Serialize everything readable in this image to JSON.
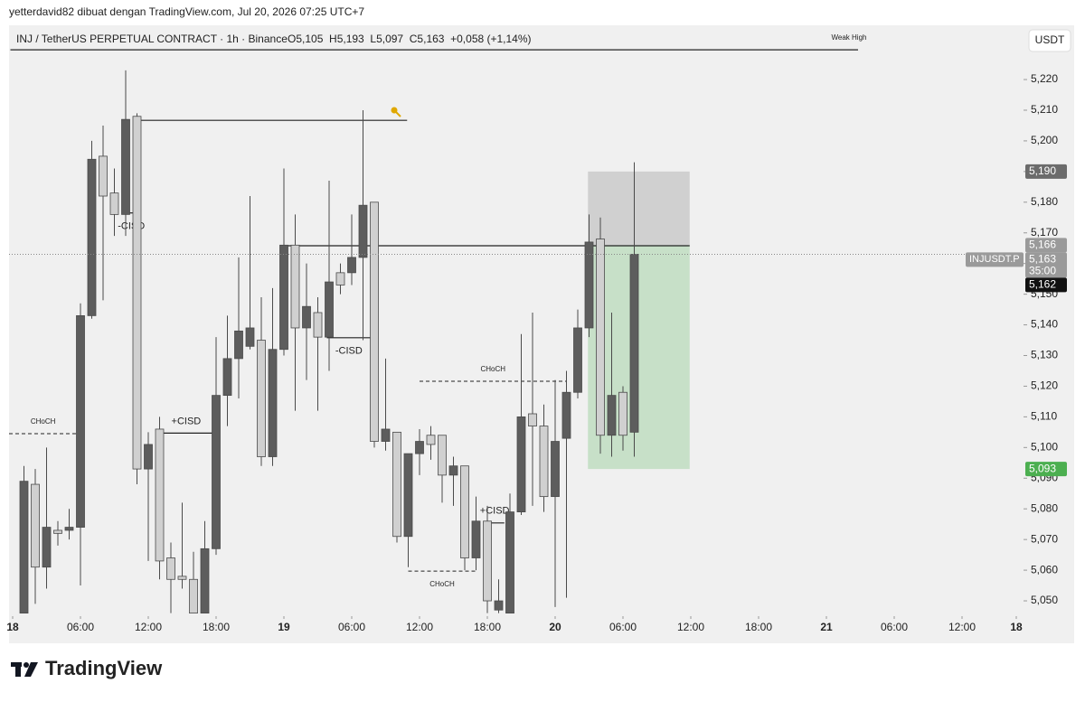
{
  "header": {
    "credit": "yetterdavid82 dibuat dengan TradingView.com, Jul 20, 2026 07:25 UTC+7",
    "symbol": "INJ / TetherUS PERPETUAL CONTRACT · 1h · Binance",
    "ohlc": "O5,105  H5,193  L5,097  C5,163  +0,058 (+1,14%)",
    "currency": "USDT",
    "logo": "TradingView"
  },
  "chart_data": {
    "type": "candlestick",
    "x": [
      1,
      2,
      3,
      4,
      5,
      6,
      7,
      8,
      9,
      10,
      11,
      12,
      13,
      14,
      15,
      16,
      17,
      18,
      19,
      20,
      21,
      22,
      23,
      24,
      25,
      26,
      27,
      28,
      29,
      30,
      31,
      32,
      33,
      34,
      35,
      36,
      37,
      38,
      39,
      40,
      41,
      42,
      43,
      44,
      45,
      46,
      47,
      48,
      49,
      50,
      51,
      52,
      53,
      54,
      55
    ],
    "open": [
      5.046,
      5.088,
      5.061,
      5.073,
      5.073,
      5.074,
      5.143,
      5.195,
      5.183,
      5.176,
      5.208,
      5.093,
      5.106,
      5.064,
      5.058,
      5.057,
      5.046,
      5.067,
      5.117,
      5.129,
      5.133,
      5.135,
      5.097,
      5.132,
      5.166,
      5.139,
      5.144,
      5.136,
      5.157,
      5.157,
      5.162,
      5.18,
      5.102,
      5.105,
      5.071,
      5.098,
      5.104,
      5.104,
      5.091,
      5.094,
      5.064,
      5.076,
      5.047,
      5.046,
      5.079,
      5.111,
      5.107,
      5.084,
      5.103,
      5.118,
      5.139,
      5.168,
      5.104,
      5.118,
      5.105
    ],
    "high": [
      5.094,
      5.093,
      5.1,
      5.076,
      5.08,
      5.147,
      5.2,
      5.205,
      5.191,
      5.223,
      5.209,
      5.105,
      5.11,
      5.069,
      5.082,
      5.066,
      5.076,
      5.136,
      5.143,
      5.162,
      5.182,
      5.149,
      5.152,
      5.191,
      5.176,
      5.16,
      5.149,
      5.187,
      5.16,
      5.176,
      5.21,
      5.18,
      5.129,
      5.105,
      5.098,
      5.106,
      5.107,
      5.104,
      5.097,
      5.094,
      5.084,
      5.081,
      5.057,
      5.085,
      5.137,
      5.144,
      5.114,
      5.122,
      5.125,
      5.145,
      5.176,
      5.175,
      5.144,
      5.12,
      5.193
    ],
    "low": [
      5.046,
      5.049,
      5.054,
      5.068,
      5.07,
      5.055,
      5.142,
      5.148,
      5.169,
      5.169,
      5.088,
      5.063,
      5.057,
      5.046,
      5.054,
      5.046,
      5.046,
      5.065,
      5.107,
      5.116,
      5.132,
      5.094,
      5.094,
      5.13,
      5.112,
      5.122,
      5.112,
      5.125,
      5.15,
      5.153,
      5.135,
      5.1,
      5.099,
      5.069,
      5.061,
      5.091,
      5.096,
      5.082,
      5.081,
      5.06,
      5.06,
      5.046,
      5.046,
      5.046,
      5.078,
      5.081,
      5.079,
      5.048,
      5.051,
      5.116,
      5.136,
      5.098,
      5.097,
      5.099,
      5.097
    ],
    "close": [
      5.089,
      5.061,
      5.074,
      5.072,
      5.074,
      5.143,
      5.194,
      5.182,
      5.176,
      5.207,
      5.093,
      5.101,
      5.063,
      5.057,
      5.057,
      5.046,
      5.067,
      5.117,
      5.129,
      5.138,
      5.139,
      5.097,
      5.132,
      5.166,
      5.139,
      5.146,
      5.136,
      5.154,
      5.153,
      5.162,
      5.179,
      5.102,
      5.106,
      5.071,
      5.098,
      5.102,
      5.101,
      5.091,
      5.094,
      5.064,
      5.076,
      5.05,
      5.05,
      5.079,
      5.11,
      5.107,
      5.084,
      5.102,
      5.118,
      5.139,
      5.167,
      5.104,
      5.117,
      5.104,
      5.163
    ],
    "up_color": "#5d5d5d",
    "down_color": "#d0d0d0",
    "wick_color": "#4a4a4a",
    "xlim": [
      -0.32,
      89.44
    ],
    "xticks": [
      {
        "value": 0,
        "label": "18"
      },
      {
        "value": 6,
        "label": "06:00"
      },
      {
        "value": 12,
        "label": "12:00"
      },
      {
        "value": 18,
        "label": "18:00"
      },
      {
        "value": 24,
        "label": "19"
      },
      {
        "value": 30,
        "label": "06:00"
      },
      {
        "value": 36,
        "label": "12:00"
      },
      {
        "value": 42,
        "label": "18:00"
      },
      {
        "value": 48,
        "label": "20"
      },
      {
        "value": 54,
        "label": "06:00"
      },
      {
        "value": 60,
        "label": "12:00"
      },
      {
        "value": 66,
        "label": "18:00"
      },
      {
        "value": 72,
        "label": "21"
      },
      {
        "value": 78,
        "label": "06:00"
      },
      {
        "value": 84,
        "label": "12:00"
      },
      {
        "value": 90,
        "label": "18"
      }
    ],
    "ylim": [
      5.045,
      5.2371
    ],
    "yticks": [
      {
        "value": 5.05,
        "label": "5,050"
      },
      {
        "value": 5.06,
        "label": "5,060"
      },
      {
        "value": 5.07,
        "label": "5,070"
      },
      {
        "value": 5.08,
        "label": "5,080"
      },
      {
        "value": 5.09,
        "label": "5,090"
      },
      {
        "value": 5.1,
        "label": "5,100"
      },
      {
        "value": 5.11,
        "label": "5,110"
      },
      {
        "value": 5.12,
        "label": "5,120"
      },
      {
        "value": 5.13,
        "label": "5,130"
      },
      {
        "value": 5.14,
        "label": "5,140"
      },
      {
        "value": 5.15,
        "label": "5,150"
      },
      {
        "value": 5.16,
        "label": "5,160"
      },
      {
        "value": 5.17,
        "label": "5,170"
      },
      {
        "value": 5.18,
        "label": "5,180"
      },
      {
        "value": 5.19,
        "label": "5,190"
      },
      {
        "value": 5.2,
        "label": "5,200"
      },
      {
        "value": 5.21,
        "label": "5,210"
      },
      {
        "value": 5.22,
        "label": "5,220"
      }
    ],
    "lines": [
      {
        "label": "Weak High",
        "y": 5.2297,
        "x": [
          -0.2,
          74.8
        ],
        "label_side": "above-end",
        "dash": false
      },
      {
        "y": 5.2067,
        "x": [
          10.7,
          34.9
        ],
        "dash": false
      },
      {
        "y": 5.1658,
        "x": [
          23.9,
          59.9
        ],
        "dash": false
      },
      {
        "label": "-CISD",
        "y": 5.1765,
        "x": [
          10,
          11
        ],
        "label_side": "below",
        "dash": false
      },
      {
        "label": "-CISD",
        "y": 5.1358,
        "x": [
          27.8,
          31.7
        ],
        "label_side": "below",
        "dash": false
      },
      {
        "label": "+CISD",
        "y": 5.1047,
        "x": [
          12.9,
          17.8
        ],
        "label_side": "above",
        "dash": false
      },
      {
        "label": "+CISD",
        "y": 5.0754,
        "x": [
          41.8,
          43.5
        ],
        "label_side": "above",
        "dash": false
      },
      {
        "label": "CHoCH",
        "y": 5.1045,
        "x": [
          -0.32,
          5.7
        ],
        "label_side": "above",
        "dash": true
      },
      {
        "label": "CHoCH",
        "y": 5.1216,
        "x": [
          36,
          49
        ],
        "label_side": "above",
        "dash": true
      },
      {
        "label": "CHoCH",
        "y": 5.0597,
        "x": [
          35,
          41
        ],
        "label_side": "below",
        "dash": true
      }
    ],
    "position": {
      "stop": 5.19,
      "entry": 5.166,
      "target": 5.093,
      "x": [
        50.9,
        59.9
      ]
    },
    "current_price": 5.163,
    "price_labels": [
      {
        "value": 5.19,
        "label": "5,190",
        "color": "#6b6b6b"
      },
      {
        "value": 5.166,
        "label": "5,166",
        "color": "#9a9a9a"
      },
      {
        "value": 5.163,
        "label": "5,163",
        "sub": "35:00",
        "tag": "INJUSDT.P",
        "color": "#9a9a9a"
      },
      {
        "value": 5.162,
        "label": "5,162",
        "color": "#111111"
      },
      {
        "value": 5.093,
        "label": "5,093",
        "color": "#4caf50"
      }
    ]
  }
}
